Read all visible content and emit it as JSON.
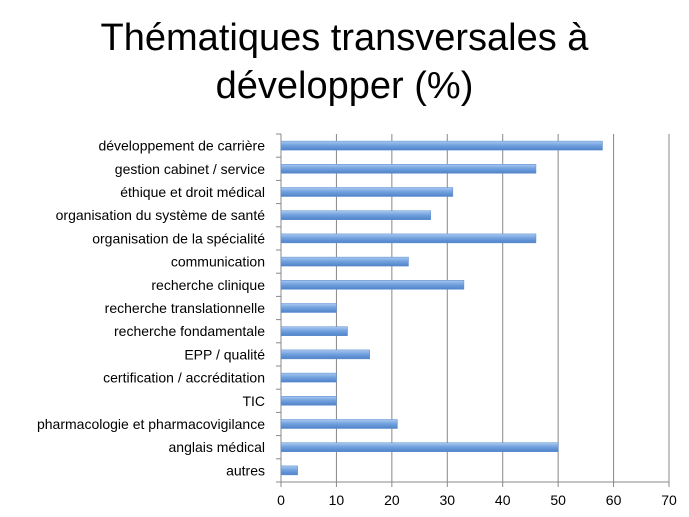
{
  "chart_data": {
    "type": "bar",
    "orientation": "horizontal",
    "title_line1": "Thématiques transversales à",
    "title_line2": "développer (%)",
    "categories": [
      "développement de carrière",
      "gestion cabinet / service",
      "éthique et droit médical",
      "organisation du système de santé",
      "organisation de la spécialité",
      "communication",
      "recherche clinique",
      "recherche translationnelle",
      "recherche fondamentale",
      "EPP / qualité",
      "certification / accréditation",
      "TIC",
      "pharmacologie et pharmacovigilance",
      "anglais médical",
      "autres"
    ],
    "values": [
      58,
      46,
      31,
      27,
      46,
      23,
      33,
      10,
      12,
      16,
      10,
      10,
      21,
      50,
      3
    ],
    "xlim": [
      0,
      70
    ],
    "xticks": [
      "0",
      "10",
      "20",
      "30",
      "40",
      "50",
      "60",
      "70"
    ],
    "grid": true,
    "bar_color": "#6f9fdd"
  }
}
